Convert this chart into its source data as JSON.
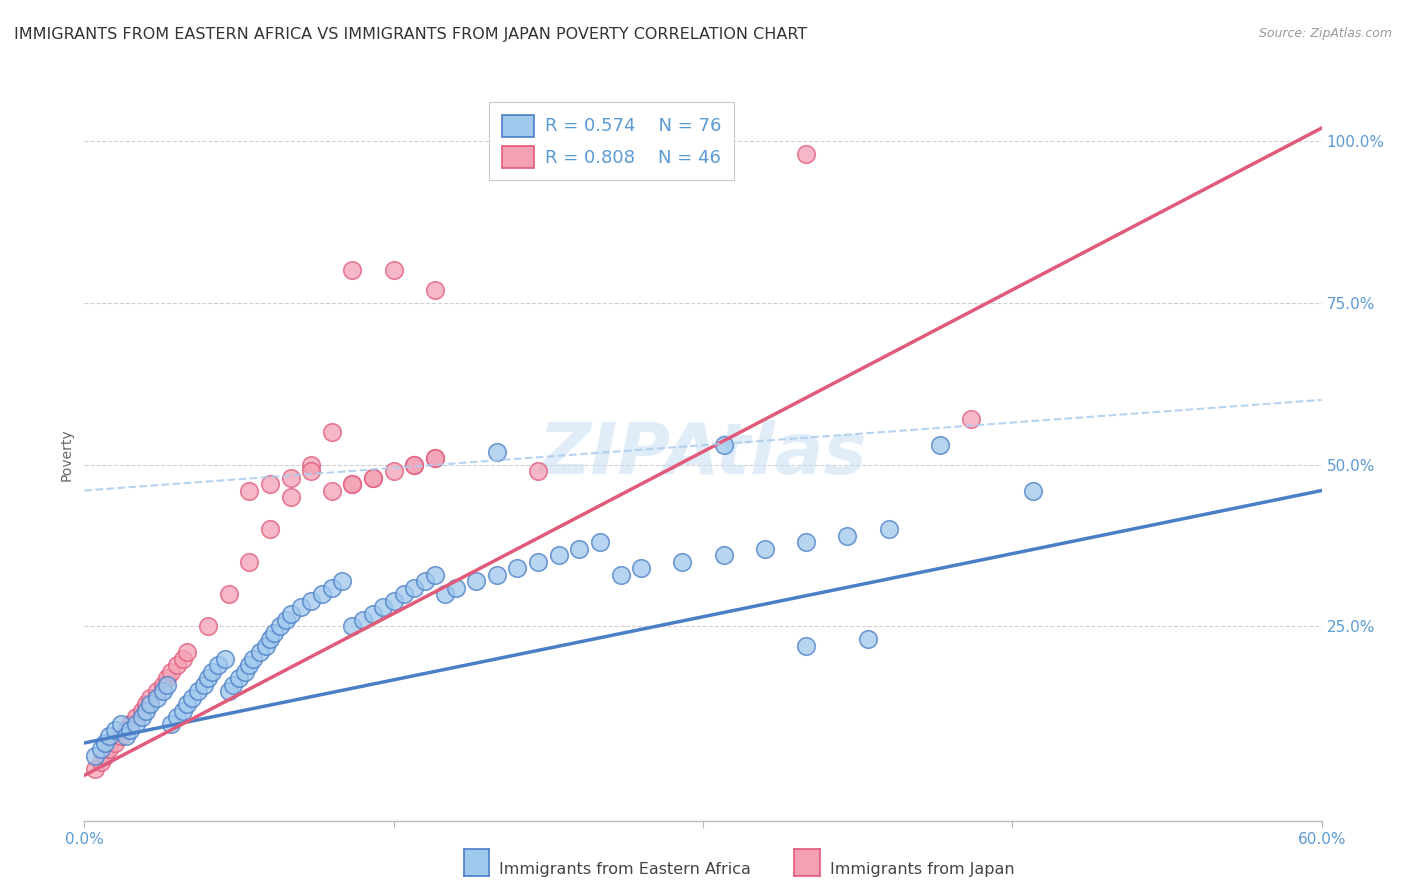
{
  "title": "IMMIGRANTS FROM EASTERN AFRICA VS IMMIGRANTS FROM JAPAN POVERTY CORRELATION CHART",
  "source": "Source: ZipAtlas.com",
  "ylabel": "Poverty",
  "y_tick_labels": [
    "100.0%",
    "75.0%",
    "50.0%",
    "25.0%"
  ],
  "y_tick_values": [
    1.0,
    0.75,
    0.5,
    0.25
  ],
  "x_range": [
    0.0,
    0.6
  ],
  "y_range": [
    -0.05,
    1.08
  ],
  "legend_blue_R": "R = 0.574",
  "legend_blue_N": "N = 76",
  "legend_pink_R": "R = 0.808",
  "legend_pink_N": "N = 46",
  "legend_label_blue": "Immigrants from Eastern Africa",
  "legend_label_pink": "Immigrants from Japan",
  "color_blue": "#9FC8ED",
  "color_pink": "#F4A0B5",
  "color_blue_line": "#4A7EC7",
  "color_pink_line": "#E05A7A",
  "color_blue_text": "#5B9BD5",
  "watermark": "ZIPAtlas",
  "blue_scatter_x": [
    0.005,
    0.008,
    0.01,
    0.012,
    0.015,
    0.018,
    0.02,
    0.022,
    0.025,
    0.028,
    0.03,
    0.032,
    0.035,
    0.038,
    0.04,
    0.042,
    0.045,
    0.048,
    0.05,
    0.052,
    0.055,
    0.058,
    0.06,
    0.062,
    0.065,
    0.068,
    0.07,
    0.072,
    0.075,
    0.078,
    0.08,
    0.082,
    0.085,
    0.088,
    0.09,
    0.092,
    0.095,
    0.098,
    0.1,
    0.105,
    0.11,
    0.115,
    0.12,
    0.125,
    0.13,
    0.135,
    0.14,
    0.145,
    0.15,
    0.155,
    0.16,
    0.165,
    0.17,
    0.175,
    0.18,
    0.19,
    0.2,
    0.21,
    0.22,
    0.23,
    0.24,
    0.25,
    0.26,
    0.27,
    0.29,
    0.31,
    0.33,
    0.35,
    0.37,
    0.39,
    0.2,
    0.31,
    0.35,
    0.38,
    0.415,
    0.46
  ],
  "blue_scatter_y": [
    0.05,
    0.06,
    0.07,
    0.08,
    0.09,
    0.1,
    0.08,
    0.09,
    0.1,
    0.11,
    0.12,
    0.13,
    0.14,
    0.15,
    0.16,
    0.1,
    0.11,
    0.12,
    0.13,
    0.14,
    0.15,
    0.16,
    0.17,
    0.18,
    0.19,
    0.2,
    0.15,
    0.16,
    0.17,
    0.18,
    0.19,
    0.2,
    0.21,
    0.22,
    0.23,
    0.24,
    0.25,
    0.26,
    0.27,
    0.28,
    0.29,
    0.3,
    0.31,
    0.32,
    0.25,
    0.26,
    0.27,
    0.28,
    0.29,
    0.3,
    0.31,
    0.32,
    0.33,
    0.3,
    0.31,
    0.32,
    0.33,
    0.34,
    0.35,
    0.36,
    0.37,
    0.38,
    0.33,
    0.34,
    0.35,
    0.36,
    0.37,
    0.38,
    0.39,
    0.4,
    0.52,
    0.53,
    0.22,
    0.23,
    0.53,
    0.46
  ],
  "pink_scatter_x": [
    0.005,
    0.008,
    0.01,
    0.012,
    0.015,
    0.018,
    0.02,
    0.022,
    0.025,
    0.028,
    0.03,
    0.032,
    0.035,
    0.038,
    0.04,
    0.042,
    0.045,
    0.048,
    0.05,
    0.06,
    0.07,
    0.08,
    0.09,
    0.1,
    0.11,
    0.12,
    0.13,
    0.14,
    0.15,
    0.16,
    0.17,
    0.08,
    0.09,
    0.1,
    0.11,
    0.12,
    0.13,
    0.14,
    0.16,
    0.17,
    0.13,
    0.15,
    0.17,
    0.22,
    0.35,
    0.43
  ],
  "pink_scatter_y": [
    0.03,
    0.04,
    0.05,
    0.06,
    0.07,
    0.08,
    0.09,
    0.1,
    0.11,
    0.12,
    0.13,
    0.14,
    0.15,
    0.16,
    0.17,
    0.18,
    0.19,
    0.2,
    0.21,
    0.25,
    0.3,
    0.35,
    0.4,
    0.45,
    0.5,
    0.55,
    0.47,
    0.48,
    0.49,
    0.5,
    0.51,
    0.46,
    0.47,
    0.48,
    0.49,
    0.46,
    0.47,
    0.48,
    0.5,
    0.51,
    0.8,
    0.8,
    0.77,
    0.49,
    0.98,
    0.57
  ],
  "blue_line_x0": 0.0,
  "blue_line_x1": 0.6,
  "blue_line_y0": 0.07,
  "blue_line_y1": 0.46,
  "pink_line_x0": 0.0,
  "pink_line_x1": 0.6,
  "pink_line_y0": 0.02,
  "pink_line_y1": 1.02,
  "dashed_line_x0": 0.0,
  "dashed_line_x1": 0.6,
  "dashed_line_y0": 0.46,
  "dashed_line_y1": 0.6,
  "background_color": "#FFFFFF",
  "grid_color": "#CCCCCC",
  "title_fontsize": 11.5,
  "axis_label_fontsize": 10,
  "tick_label_fontsize": 11,
  "legend_fontsize": 13
}
